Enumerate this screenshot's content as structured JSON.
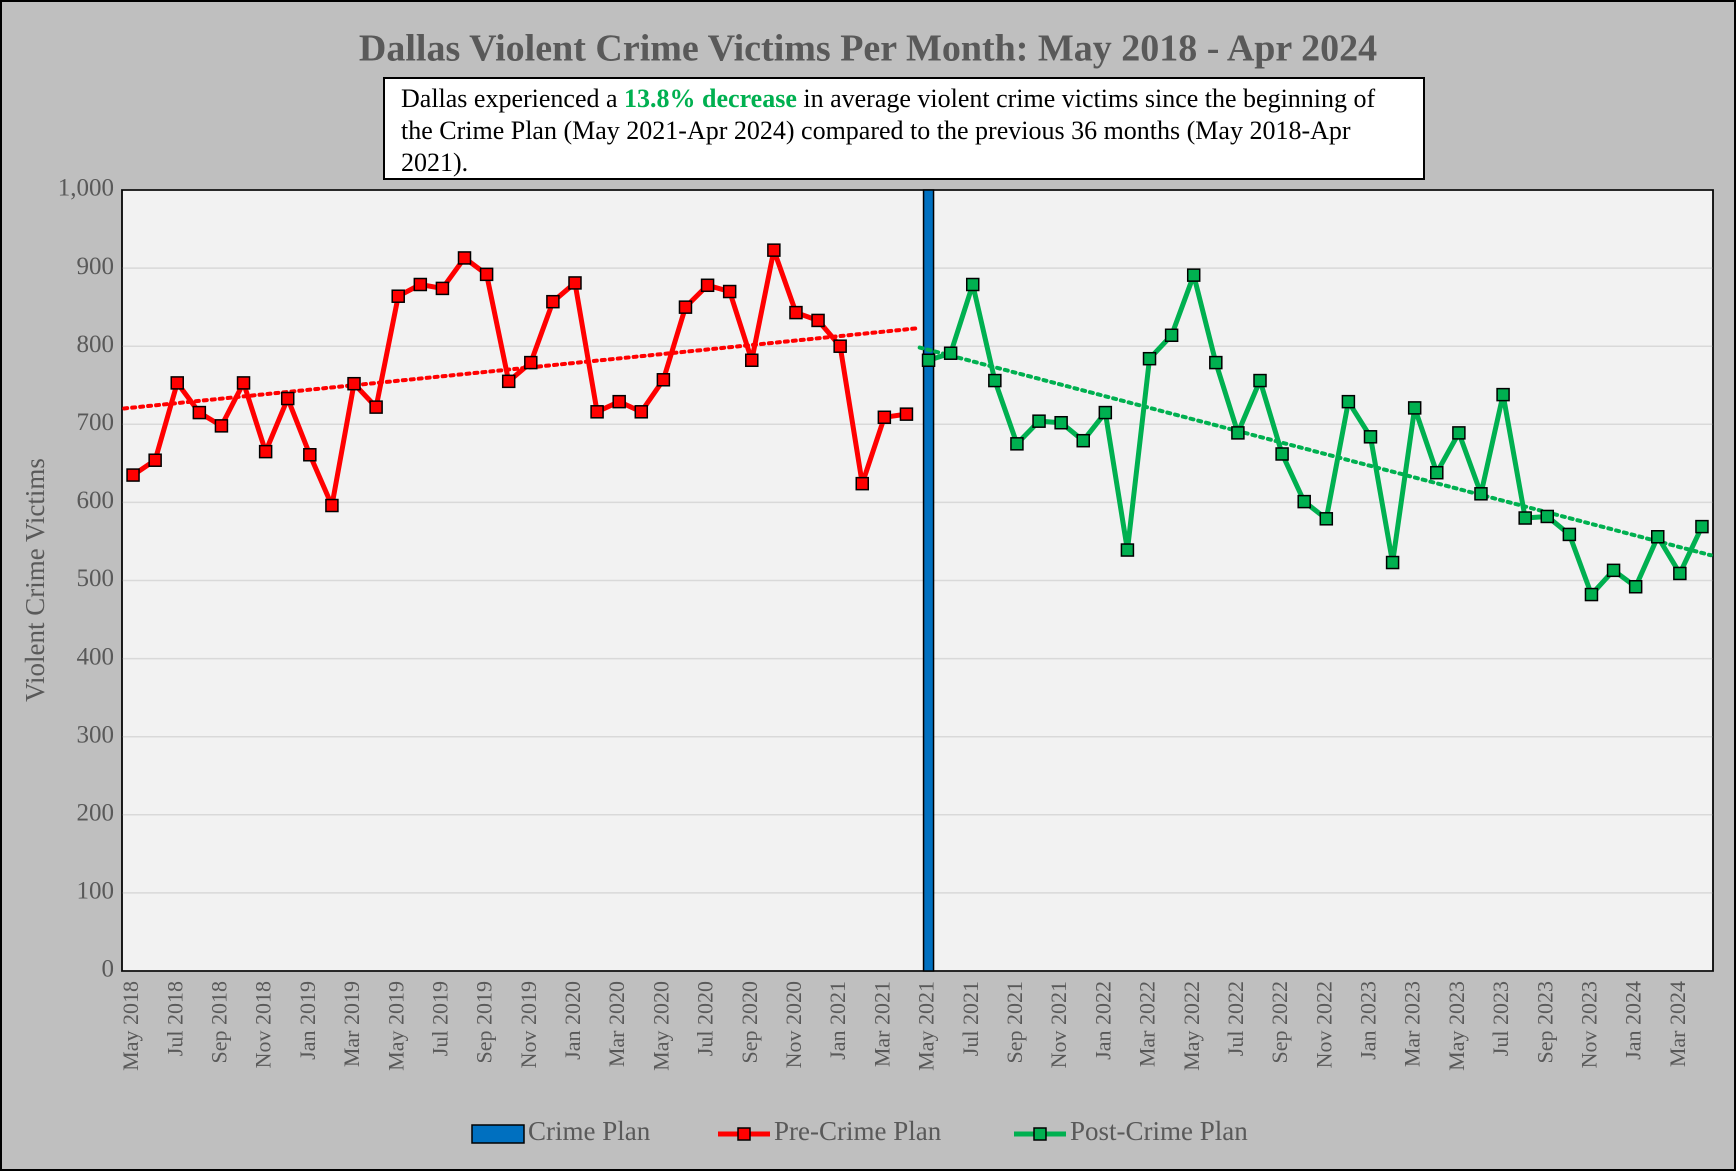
{
  "chart_data": {
    "type": "line",
    "title": "Dallas Violent Crime Victims Per Month: May 2018 - Apr 2024",
    "annotation": {
      "before": "Dallas experienced a ",
      "highlight": "13.8% decrease",
      "after": " in average violent crime victims since the beginning of the Crime Plan (May 2021-Apr 2024) compared to the previous 36 months (May 2018-Apr 2021).",
      "highlight_color": "#00b050"
    },
    "y_label": "Violent Crime Victims",
    "categories": [
      "May 2018",
      null,
      "Jul 2018",
      null,
      "Sep 2018",
      null,
      "Nov 2018",
      null,
      "Jan 2019",
      null,
      "Mar 2019",
      null,
      "May 2019",
      null,
      "Jul 2019",
      null,
      "Sep 2019",
      null,
      "Nov 2019",
      null,
      "Jan 2020",
      null,
      "Mar 2020",
      null,
      "May 2020",
      null,
      "Jul 2020",
      null,
      "Sep 2020",
      null,
      "Nov 2020",
      null,
      "Jan 2021",
      null,
      "Mar 2021",
      null,
      "May 2021",
      null,
      "Jul 2021",
      null,
      "Sep 2021",
      null,
      "Nov 2021",
      null,
      "Jan 2022",
      null,
      "Mar 2022",
      null,
      "May 2022",
      null,
      "Jul 2022",
      null,
      "Sep 2022",
      null,
      "Nov 2022",
      null,
      "Jan 2023",
      null,
      "Mar 2023",
      null,
      "May 2023",
      null,
      "Jul 2023",
      null,
      "Sep 2023",
      null,
      "Nov 2023",
      null,
      "Jan 2024",
      null,
      "Mar 2024",
      null
    ],
    "series": [
      {
        "name": "Pre-Crime Plan",
        "color": "#ff0000",
        "trendline": true,
        "values": [
          635,
          654,
          753,
          715,
          698,
          753,
          665,
          733,
          661,
          596,
          752,
          722,
          864,
          879,
          874,
          913,
          892,
          755,
          779,
          857,
          881,
          716,
          729,
          716,
          757,
          850,
          878,
          870,
          782,
          923,
          843,
          833,
          800,
          624,
          709,
          713,
          null,
          null,
          null,
          null,
          null,
          null,
          null,
          null,
          null,
          null,
          null,
          null,
          null,
          null,
          null,
          null,
          null,
          null,
          null,
          null,
          null,
          null,
          null,
          null,
          null,
          null,
          null,
          null,
          null,
          null,
          null,
          null,
          null,
          null,
          null,
          null
        ]
      },
      {
        "name": "Post-Crime Plan",
        "color": "#00b050",
        "trendline": true,
        "values": [
          null,
          null,
          null,
          null,
          null,
          null,
          null,
          null,
          null,
          null,
          null,
          null,
          null,
          null,
          null,
          null,
          null,
          null,
          null,
          null,
          null,
          null,
          null,
          null,
          null,
          null,
          null,
          null,
          null,
          null,
          null,
          null,
          null,
          null,
          null,
          null,
          782,
          791,
          879,
          756,
          675,
          704,
          702,
          679,
          715,
          539,
          784,
          814,
          891,
          779,
          689,
          756,
          662,
          601,
          579,
          729,
          684,
          523,
          721,
          638,
          689,
          611,
          738,
          580,
          582,
          559,
          482,
          513,
          492,
          556,
          509,
          569
        ]
      }
    ],
    "vline": {
      "name": "Crime Plan",
      "color": "#0070c0",
      "category": "May 2021"
    },
    "ylim": [
      0,
      1000
    ],
    "yticks": [
      0,
      100,
      200,
      300,
      400,
      500,
      600,
      700,
      800,
      900,
      {
        "value": 1000,
        "label": "1,000"
      }
    ],
    "grid": true,
    "legend": "bottom"
  }
}
